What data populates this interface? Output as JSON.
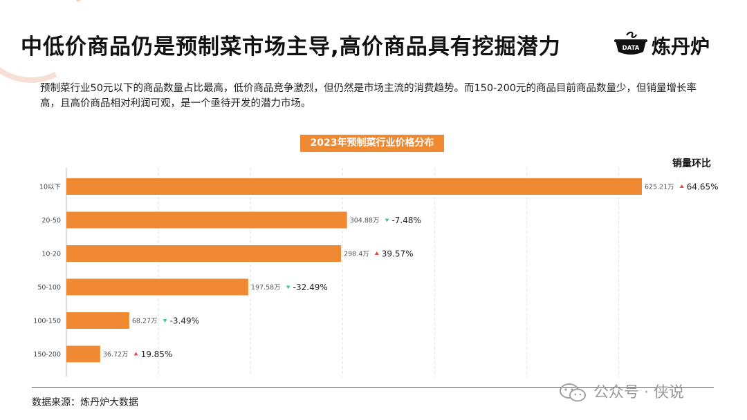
{
  "title": "中低价商品仍是预制菜市场主导,高价商品具有挖掘潜力",
  "brand": {
    "name": "炼丹炉",
    "icon_text": "DATA",
    "icon": "cooking-pot-icon"
  },
  "description": "预制菜行业50元以下的商品数量占比最高，低价商品竞争激烈，但仍然是市场主流的消费趋势。而150-200元的商品目前商品数量少，但销量增长率高，且高价商品相对利润可观，是一个亟待开发的潜力市场。",
  "legend_label": "销量环比",
  "source": "数据来源：炼丹炉大数据",
  "watermark": {
    "text": "公众号 · 侠说",
    "icon": "wechat-icon"
  },
  "colors": {
    "bar": "#ef8a32",
    "up": "#e0454a",
    "down": "#4cc48a",
    "accent": "#ef8a32"
  },
  "chart_data": {
    "type": "bar",
    "orientation": "horizontal",
    "title": "2023年预制菜行业价格分布",
    "categories": [
      "10以下",
      "20-50",
      "10-20",
      "50-100",
      "100-150",
      "150-200"
    ],
    "values": [
      625.21,
      304.88,
      298.4,
      197.58,
      68.27,
      36.72
    ],
    "value_labels": [
      "625.21万",
      "304.88万",
      "298.4万",
      "197.58万",
      "68.27万",
      "36.72万"
    ],
    "series_name": "销量",
    "unit": "万",
    "xlim": [
      0,
      650
    ],
    "grid": true,
    "change_series": {
      "name": "销量环比",
      "labels": [
        "64.65%",
        "-7.48%",
        "39.57%",
        "-32.49%",
        "-3.49%",
        "19.85%"
      ],
      "direction": [
        "up",
        "down",
        "up",
        "down",
        "down",
        "up"
      ]
    }
  }
}
